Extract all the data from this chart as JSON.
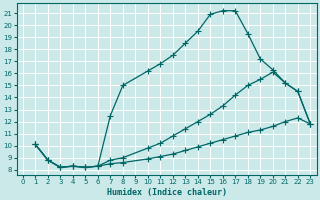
{
  "xlabel": "Humidex (Indice chaleur)",
  "bg_color": "#cce9e9",
  "grid_color": "#ffffff",
  "line_color": "#006666",
  "xlim": [
    -0.5,
    23.5
  ],
  "ylim": [
    7.6,
    21.8
  ],
  "xticks": [
    0,
    1,
    2,
    3,
    4,
    5,
    6,
    7,
    8,
    9,
    10,
    11,
    12,
    13,
    14,
    15,
    16,
    17,
    18,
    19,
    20,
    21,
    22,
    23
  ],
  "yticks": [
    8,
    9,
    10,
    11,
    12,
    13,
    14,
    15,
    16,
    17,
    18,
    19,
    20,
    21
  ],
  "curve1_x": [
    1,
    2,
    3,
    4,
    5,
    6,
    7,
    8,
    10,
    11,
    12,
    13,
    14,
    15,
    16,
    17,
    18,
    19,
    20,
    21,
    22,
    23
  ],
  "curve1_y": [
    10.1,
    8.8,
    8.2,
    8.3,
    8.2,
    8.3,
    12.5,
    15.0,
    16.2,
    16.8,
    17.5,
    18.5,
    19.5,
    20.9,
    21.2,
    21.2,
    19.3,
    17.2,
    16.3,
    15.2,
    14.5,
    11.8
  ],
  "curve2_x": [
    1,
    2,
    3,
    4,
    5,
    6,
    7,
    8,
    10,
    11,
    12,
    13,
    14,
    15,
    16,
    17,
    18,
    19,
    20,
    21,
    22,
    23
  ],
  "curve2_y": [
    10.1,
    8.8,
    8.2,
    8.3,
    8.2,
    8.3,
    8.8,
    9.0,
    9.8,
    10.2,
    10.8,
    11.4,
    12.0,
    12.6,
    13.3,
    14.2,
    15.0,
    15.5,
    16.1,
    15.2,
    14.5,
    11.8
  ],
  "curve3_x": [
    1,
    2,
    3,
    4,
    5,
    6,
    7,
    8,
    10,
    11,
    12,
    13,
    14,
    15,
    16,
    17,
    18,
    19,
    20,
    21,
    22,
    23
  ],
  "curve3_y": [
    10.1,
    8.8,
    8.2,
    8.3,
    8.2,
    8.3,
    8.5,
    8.6,
    8.9,
    9.1,
    9.3,
    9.6,
    9.9,
    10.2,
    10.5,
    10.8,
    11.1,
    11.3,
    11.6,
    12.0,
    12.3,
    11.8
  ]
}
